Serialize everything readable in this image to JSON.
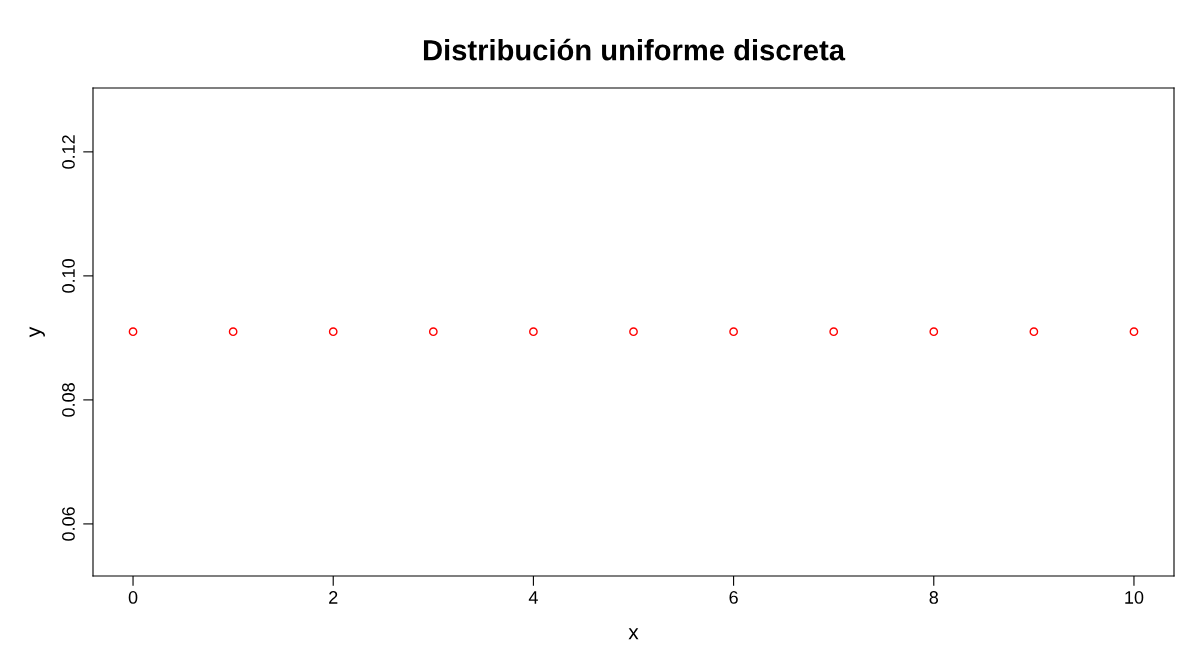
{
  "chart_data": {
    "type": "scatter",
    "title": "Distribución uniforme discreta",
    "xlabel": "x",
    "ylabel": "y",
    "x": [
      0,
      1,
      2,
      3,
      4,
      5,
      6,
      7,
      8,
      9,
      10
    ],
    "series": [
      {
        "color": "#ff0000",
        "values": [
          0.091,
          0.091,
          0.091,
          0.091,
          0.091,
          0.091,
          0.091,
          0.091,
          0.091,
          0.091,
          0.091
        ]
      }
    ],
    "marker": "circle",
    "xlim": [
      -0.4,
      10.4
    ],
    "ylim": [
      0.0516,
      0.1303
    ],
    "xticks": [
      0,
      2,
      4,
      6,
      8,
      10
    ],
    "yticks": [
      0.06,
      0.08,
      {
        "value": 0.1,
        "label": "0.10"
      },
      0.12
    ],
    "grid": false,
    "legend": false
  }
}
